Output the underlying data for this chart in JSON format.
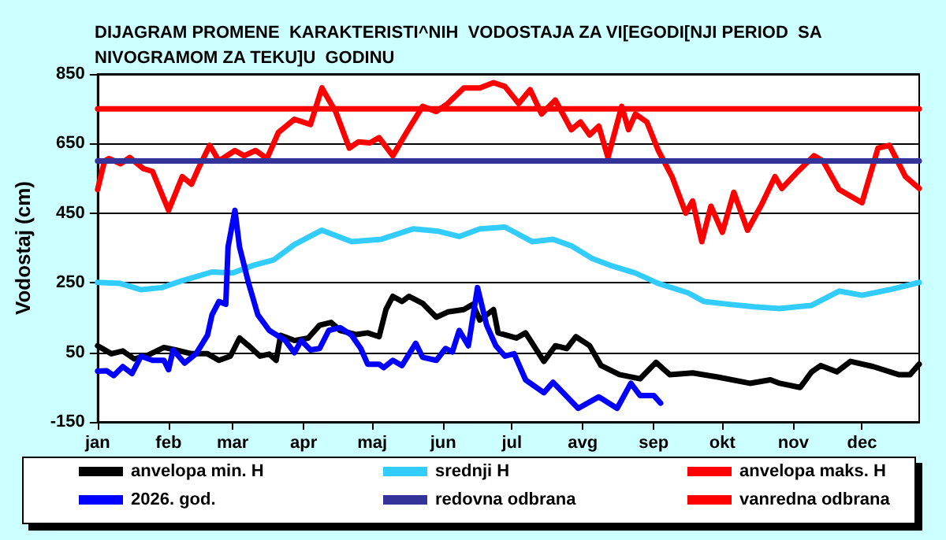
{
  "chart_data": {
    "type": "line",
    "title": "DIJAGRAM PROMENE  KARAKTERISTI^NIH  VODOSTAJA ZA VI[EGODI[NJI PERIOD  SA NIVOGRAMOM ZA TEKU]U  GODINU",
    "ylabel": "Vodostaj (cm)",
    "xlim": [
      "--01-01",
      "--12-26"
    ],
    "xticks": [
      {
        "value": "--01-01",
        "label": "jan"
      },
      {
        "value": "--02-01",
        "label": "feb"
      },
      {
        "value": "--03-01",
        "label": "mar"
      },
      {
        "value": "--04-01",
        "label": "apr"
      },
      {
        "value": "--05-01",
        "label": "maj"
      },
      {
        "value": "--06-01",
        "label": "jun"
      },
      {
        "value": "--07-01",
        "label": "jul"
      },
      {
        "value": "--08-01",
        "label": "avg"
      },
      {
        "value": "--09-01",
        "label": "sep"
      },
      {
        "value": "--10-01",
        "label": "okt"
      },
      {
        "value": "--11-01",
        "label": "nov"
      },
      {
        "value": "--12-01",
        "label": "dec"
      }
    ],
    "ylim": [
      -150,
      850
    ],
    "yticks": [
      -150,
      50,
      250,
      450,
      650,
      850
    ],
    "grid": "y",
    "legend": "bottom",
    "marker": "none",
    "line_style": "solid",
    "series": [
      {
        "name": "anvelopa min. H",
        "color": "#000000",
        "x": [
          "--01-01",
          "--01-07",
          "--01-12",
          "--01-17",
          "--01-23",
          "--01-30",
          "--02-04",
          "--02-11",
          "--02-18",
          "--02-23",
          "--02-28",
          "--03-04",
          "--03-08",
          "--03-13",
          "--03-17",
          "--03-20",
          "--03-22",
          "--03-28",
          "--04-03",
          "--04-08",
          "--04-13",
          "--04-17",
          "--04-24",
          "--04-29",
          "--05-04",
          "--05-07",
          "--05-10",
          "--05-14",
          "--05-17",
          "--05-23",
          "--05-29",
          "--06-03",
          "--06-10",
          "--06-14",
          "--06-17",
          "--06-23",
          "--06-25",
          "--07-03",
          "--07-07",
          "--07-15",
          "--07-20",
          "--07-25",
          "--07-29",
          "--08-04",
          "--08-09",
          "--08-17",
          "--08-26",
          "--09-02",
          "--09-08",
          "--09-18",
          "--09-29",
          "--10-13",
          "--10-22",
          "--10-26",
          "--11-04",
          "--11-09",
          "--11-13",
          "--11-20",
          "--11-26",
          "--12-06",
          "--12-17",
          "--12-22",
          "--12-26"
        ],
        "values": [
          69,
          46,
          54,
          31,
          42,
          64,
          57,
          46,
          46,
          27,
          39,
          91,
          69,
          39,
          45,
          27,
          99,
          84,
          91,
          128,
          136,
          113,
          101,
          106,
          95,
          173,
          211,
          196,
          211,
          191,
          151,
          166,
          173,
          188,
          143,
          173,
          106,
          91,
          106,
          24,
          69,
          61,
          95,
          69,
          12,
          -14,
          -26,
          21,
          -14,
          -9,
          -21,
          -39,
          -29,
          -39,
          -51,
          -6,
          12,
          -6,
          24,
          9,
          -14,
          -14,
          16
        ]
      },
      {
        "name": "srednji H",
        "color": "#33ccff",
        "x": [
          "--01-01",
          "--01-11",
          "--01-20",
          "--01-29",
          "--02-07",
          "--02-20",
          "--03-01",
          "--03-10",
          "--03-19",
          "--03-28",
          "--04-09",
          "--04-22",
          "--05-05",
          "--05-19",
          "--05-30",
          "--06-08",
          "--06-17",
          "--06-28",
          "--07-10",
          "--07-19",
          "--07-27",
          "--08-05",
          "--08-13",
          "--08-24",
          "--09-03",
          "--09-16",
          "--09-23",
          "--10-04",
          "--10-15",
          "--10-26",
          "--11-09",
          "--11-21",
          "--12-01",
          "--12-13",
          "--12-26"
        ],
        "values": [
          251,
          248,
          230,
          236,
          256,
          281,
          278,
          300,
          316,
          360,
          401,
          368,
          375,
          405,
          398,
          383,
          405,
          410,
          368,
          375,
          356,
          320,
          300,
          278,
          248,
          221,
          196,
          188,
          181,
          176,
          185,
          226,
          214,
          230,
          251
        ]
      },
      {
        "name": "anvelopa maks. H",
        "color": "#ff0000",
        "x": [
          "--01-01",
          "--01-04",
          "--01-06",
          "--01-11",
          "--01-15",
          "--01-21",
          "--01-25",
          "--02-01",
          "--02-07",
          "--02-11",
          "--02-14",
          "--02-19",
          "--02-23",
          "--03-02",
          "--03-06",
          "--03-11",
          "--03-16",
          "--03-21",
          "--03-28",
          "--04-04",
          "--04-09",
          "--04-15",
          "--04-21",
          "--04-25",
          "--04-30",
          "--05-04",
          "--05-10",
          "--05-16",
          "--05-23",
          "--05-29",
          "--06-03",
          "--06-10",
          "--06-17",
          "--06-23",
          "--06-28",
          "--07-04",
          "--07-09",
          "--07-14",
          "--07-20",
          "--07-27",
          "--07-31",
          "--08-04",
          "--08-08",
          "--08-12",
          "--08-18",
          "--08-21",
          "--08-24",
          "--08-29",
          "--09-03",
          "--09-09",
          "--09-15",
          "--09-18",
          "--09-22",
          "--09-26",
          "--10-01",
          "--10-06",
          "--10-12",
          "--10-18",
          "--10-24",
          "--10-27",
          "--11-02",
          "--11-10",
          "--11-14",
          "--11-21",
          "--12-01",
          "--12-08",
          "--12-13",
          "--12-20",
          "--12-26"
        ],
        "values": [
          518,
          600,
          607,
          592,
          610,
          578,
          570,
          458,
          555,
          533,
          578,
          645,
          600,
          630,
          615,
          630,
          607,
          682,
          720,
          705,
          810,
          742,
          637,
          655,
          652,
          667,
          615,
          682,
          757,
          742,
          765,
          810,
          810,
          825,
          814,
          765,
          805,
          735,
          775,
          690,
          712,
          675,
          700,
          610,
          757,
          690,
          735,
          712,
          630,
          555,
          450,
          485,
          368,
          470,
          395,
          510,
          401,
          473,
          555,
          521,
          563,
          615,
          600,
          518,
          480,
          637,
          645,
          555,
          521
        ]
      },
      {
        "name": "2026. god.",
        "color": "#0000ff",
        "x": [
          "--01-01",
          "--01-05",
          "--01-08",
          "--01-12",
          "--01-16",
          "--01-20",
          "--01-25",
          "--01-30",
          "--02-01",
          "--02-03",
          "--02-08",
          "--02-13",
          "--02-18",
          "--02-20",
          "--02-23",
          "--02-26",
          "--02-27",
          "--03-02",
          "--03-04",
          "--03-08",
          "--03-12",
          "--03-17",
          "--03-24",
          "--03-28",
          "--03-31",
          "--04-04",
          "--04-08",
          "--04-12",
          "--04-17",
          "--04-22",
          "--04-26",
          "--04-29",
          "--05-04",
          "--05-06",
          "--05-10",
          "--05-14",
          "--05-20",
          "--05-23",
          "--05-29",
          "--06-02",
          "--06-05",
          "--06-08",
          "--06-12",
          "--06-16",
          "--06-20",
          "--06-24",
          "--06-28",
          "--07-02",
          "--07-07",
          "--07-15",
          "--07-19",
          "--07-30",
          "--08-08",
          "--08-16",
          "--08-22",
          "--08-26",
          "--09-01",
          "--09-04"
        ],
        "values": [
          -4,
          -3,
          -17,
          9,
          -11,
          39,
          27,
          27,
          0,
          57,
          19,
          46,
          99,
          158,
          196,
          188,
          353,
          458,
          353,
          248,
          158,
          113,
          84,
          49,
          84,
          57,
          61,
          113,
          121,
          99,
          61,
          16,
          16,
          6,
          27,
          12,
          76,
          36,
          27,
          61,
          51,
          113,
          69,
          236,
          128,
          69,
          39,
          46,
          -29,
          -66,
          -36,
          -111,
          -78,
          -111,
          -39,
          -74,
          -74,
          -96
        ]
      },
      {
        "name": "redovna odbrana",
        "color": "#333399",
        "x": [
          "--01-01",
          "--12-26"
        ],
        "values": [
          600,
          600
        ]
      },
      {
        "name": "vanredna odbrana",
        "color": "#ff0000",
        "x": [
          "--01-01",
          "--12-26"
        ],
        "values": [
          750,
          750
        ]
      }
    ]
  }
}
